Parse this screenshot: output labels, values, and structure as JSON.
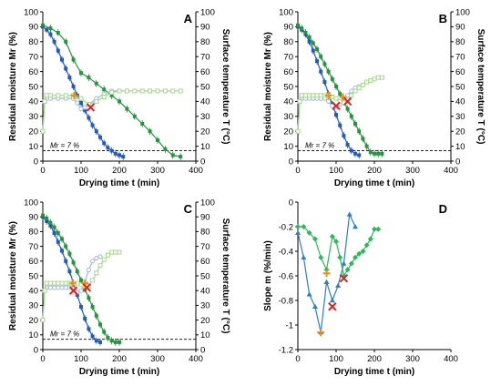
{
  "chart_data": [
    {
      "panel": "A",
      "type": "line",
      "xlabel": "Drying time t (min)",
      "ylabel_left": "Residual moisture Mr (%)",
      "ylabel_right": "Surface temperature T (°C)",
      "xlim": [
        0,
        400
      ],
      "ylim": [
        0,
        100
      ],
      "xticks": [
        "0",
        "100",
        "200",
        "300",
        "400"
      ],
      "yticks": [
        "0",
        "10",
        "20",
        "30",
        "40",
        "50",
        "60",
        "70",
        "80",
        "90",
        "100"
      ],
      "yticks_right": [
        "0",
        "10",
        "20",
        "30",
        "40",
        "50",
        "60",
        "70",
        "80",
        "90",
        "100"
      ],
      "threshold": {
        "value": 7,
        "label": "Mr = 7 %"
      },
      "colors": {
        "blue": "#1f5bc4",
        "green": "#1e9a3a",
        "light_blue": "#9db8dc",
        "light_green": "#a6d88a"
      },
      "series": [
        {
          "color": "blue",
          "marker": "square",
          "x": [
            0,
            10,
            20,
            30,
            40,
            50,
            60,
            70,
            80,
            90,
            100,
            110,
            120,
            130,
            140,
            150,
            160,
            170,
            180,
            190,
            200,
            210
          ],
          "y": [
            90,
            88,
            85,
            80,
            74,
            68,
            62,
            56,
            50,
            44,
            39,
            34,
            29,
            24,
            20,
            16,
            12,
            9,
            7,
            5,
            4,
            3
          ]
        },
        {
          "color": "green",
          "marker": "square",
          "x": [
            0,
            20,
            40,
            60,
            80,
            100,
            120,
            140,
            160,
            180,
            200,
            220,
            240,
            260,
            280,
            300,
            320,
            340,
            360
          ],
          "y": [
            91,
            89,
            86,
            80,
            68,
            59,
            56,
            52,
            48,
            44,
            40,
            35,
            30,
            25,
            20,
            14,
            8,
            4,
            3
          ]
        },
        {
          "color": "light_blue",
          "marker": "open-circle",
          "x": [
            0,
            5,
            10,
            20,
            40,
            60,
            80,
            90,
            100,
            110,
            120,
            140,
            160,
            180,
            200,
            220
          ],
          "y": [
            20,
            40,
            42,
            42,
            42,
            42,
            42,
            39,
            35,
            36,
            38,
            42,
            45,
            47,
            47,
            47
          ]
        },
        {
          "color": "light_green",
          "marker": "open-square",
          "x": [
            0,
            5,
            10,
            20,
            40,
            60,
            80,
            100,
            120,
            140,
            160,
            180,
            200,
            220,
            240,
            260,
            280,
            300,
            320,
            340,
            360
          ],
          "y": [
            20,
            40,
            44,
            44,
            44,
            44,
            44,
            42,
            38,
            40,
            43,
            46,
            47,
            47,
            47,
            47,
            47,
            47,
            47,
            47,
            47
          ]
        }
      ],
      "markers": [
        {
          "type": "orange-cross",
          "x": 82,
          "y": 44
        },
        {
          "type": "red-x",
          "x": 125,
          "y": 36
        }
      ]
    },
    {
      "panel": "B",
      "type": "line",
      "xlabel": "Drying time t (min)",
      "ylabel_left": "Residual moisture Mr (%)",
      "ylabel_right": "Surface temperature T (°C)",
      "xlim": [
        0,
        400
      ],
      "ylim": [
        0,
        100
      ],
      "xticks": [
        "0",
        "100",
        "200",
        "300",
        "400"
      ],
      "yticks": [
        "0",
        "10",
        "20",
        "30",
        "40",
        "50",
        "60",
        "70",
        "80",
        "90",
        "100"
      ],
      "yticks_right": [
        "0",
        "10",
        "20",
        "30",
        "40",
        "50",
        "60",
        "70",
        "80",
        "90",
        "100"
      ],
      "threshold": {
        "value": 7,
        "label": "Mr = 7 %"
      },
      "colors": {
        "blue": "#1f5bc4",
        "green": "#1e9a3a",
        "light_blue": "#9db8dc",
        "light_green": "#a6d88a"
      },
      "series": [
        {
          "color": "blue",
          "marker": "square",
          "x": [
            0,
            10,
            20,
            30,
            40,
            50,
            60,
            70,
            80,
            90,
            100,
            110,
            120,
            130,
            140,
            150,
            160
          ],
          "y": [
            90,
            88,
            85,
            80,
            74,
            67,
            60,
            53,
            45,
            38,
            31,
            24,
            17,
            11,
            7,
            5,
            4
          ]
        },
        {
          "color": "green",
          "marker": "square",
          "x": [
            0,
            10,
            20,
            30,
            40,
            50,
            60,
            70,
            80,
            90,
            100,
            110,
            120,
            130,
            140,
            150,
            160,
            170,
            180,
            190,
            200,
            210,
            220
          ],
          "y": [
            91,
            89,
            86,
            83,
            79,
            75,
            70,
            65,
            60,
            55,
            50,
            45,
            40,
            35,
            30,
            25,
            20,
            15,
            10,
            6,
            5,
            5,
            5
          ]
        },
        {
          "color": "light_blue",
          "marker": "open-circle",
          "x": [
            0,
            5,
            10,
            20,
            30,
            40,
            50,
            60,
            70,
            80,
            90,
            100,
            110,
            120,
            130,
            140,
            150,
            160
          ],
          "y": [
            20,
            40,
            42,
            42,
            42,
            42,
            42,
            42,
            42,
            40,
            37,
            36,
            38,
            41,
            44,
            47,
            49,
            50
          ]
        },
        {
          "color": "light_green",
          "marker": "open-square",
          "x": [
            0,
            5,
            10,
            20,
            30,
            40,
            50,
            60,
            70,
            80,
            90,
            100,
            110,
            120,
            130,
            140,
            150,
            160,
            170,
            180,
            190,
            200,
            210,
            220
          ],
          "y": [
            20,
            40,
            44,
            44,
            44,
            44,
            44,
            44,
            44,
            44,
            43,
            42,
            40,
            39,
            41,
            44,
            47,
            49,
            51,
            53,
            54,
            55,
            56,
            56
          ]
        }
      ],
      "markers": [
        {
          "type": "orange-cross",
          "x": 80,
          "y": 44
        },
        {
          "type": "red-x",
          "x": 100,
          "y": 37
        },
        {
          "type": "orange-cross",
          "x": 118,
          "y": 43
        },
        {
          "type": "red-x",
          "x": 130,
          "y": 40
        }
      ]
    },
    {
      "panel": "C",
      "type": "line",
      "xlabel": "Drying time t (min)",
      "ylabel_left": "Residual moisture Mr (%)",
      "ylabel_right": "Surface temperature T (°C)",
      "xlim": [
        0,
        400
      ],
      "ylim": [
        0,
        100
      ],
      "xticks": [
        "0",
        "100",
        "200",
        "300",
        "400"
      ],
      "yticks": [
        "0",
        "10",
        "20",
        "30",
        "40",
        "50",
        "60",
        "70",
        "80",
        "90",
        "100"
      ],
      "yticks_right": [
        "0",
        "10",
        "20",
        "30",
        "40",
        "50",
        "60",
        "70",
        "80",
        "90",
        "100"
      ],
      "threshold": {
        "value": 7,
        "label": "Mr = 7 %"
      },
      "colors": {
        "blue": "#1f5bc4",
        "green": "#1e9a3a",
        "light_blue": "#9db8dc",
        "light_green": "#a6d88a"
      },
      "series": [
        {
          "color": "blue",
          "marker": "square",
          "x": [
            0,
            10,
            20,
            30,
            40,
            50,
            60,
            70,
            80,
            90,
            100,
            110,
            120,
            130,
            140,
            150
          ],
          "y": [
            90,
            87,
            84,
            79,
            73,
            67,
            60,
            53,
            45,
            37,
            29,
            21,
            14,
            9,
            6,
            5
          ]
        },
        {
          "color": "green",
          "marker": "square",
          "x": [
            0,
            10,
            20,
            30,
            40,
            50,
            60,
            70,
            80,
            90,
            100,
            110,
            120,
            130,
            140,
            150,
            160,
            170,
            180,
            190,
            200
          ],
          "y": [
            91,
            89,
            86,
            83,
            79,
            75,
            70,
            65,
            59,
            53,
            47,
            41,
            35,
            29,
            23,
            17,
            12,
            8,
            6,
            5,
            5
          ]
        },
        {
          "color": "light_blue",
          "marker": "open-circle",
          "x": [
            0,
            5,
            10,
            20,
            30,
            40,
            50,
            60,
            70,
            80,
            90,
            100,
            110,
            120,
            130,
            140,
            150
          ],
          "y": [
            20,
            40,
            42,
            42,
            42,
            42,
            42,
            42,
            42,
            41,
            39,
            40,
            46,
            54,
            60,
            62,
            63
          ]
        },
        {
          "color": "light_green",
          "marker": "open-square",
          "x": [
            0,
            5,
            10,
            20,
            30,
            40,
            50,
            60,
            70,
            80,
            90,
            100,
            110,
            120,
            130,
            140,
            150,
            160,
            170,
            180,
            190,
            200
          ],
          "y": [
            20,
            40,
            45,
            45,
            45,
            45,
            45,
            45,
            45,
            45,
            45,
            44,
            43,
            43,
            47,
            52,
            57,
            61,
            64,
            66,
            66,
            66
          ]
        }
      ],
      "markers": [
        {
          "type": "orange-cross",
          "x": 78,
          "y": 45
        },
        {
          "type": "red-x",
          "x": 80,
          "y": 40
        },
        {
          "type": "orange-cross",
          "x": 110,
          "y": 45
        },
        {
          "type": "red-x",
          "x": 115,
          "y": 42
        }
      ]
    },
    {
      "panel": "D",
      "type": "line",
      "xlabel": "Drying time t (min)",
      "ylabel": "Slope m (%/min)",
      "xlim": [
        0,
        400
      ],
      "ylim": [
        -1.2,
        0
      ],
      "xticks": [
        "0",
        "100",
        "200",
        "300",
        "400"
      ],
      "yticks": [
        "-1.2",
        "-1",
        "-0.8",
        "-0.6",
        "-0.4",
        "-0.2",
        "0"
      ],
      "colors": {
        "blue": "#2b7fc2",
        "green": "#2db85a"
      },
      "series": [
        {
          "color": "blue",
          "marker": "triangle",
          "x": [
            0,
            15,
            30,
            45,
            60,
            75,
            90,
            105,
            120,
            135,
            150
          ],
          "y": [
            -0.25,
            -0.45,
            -0.75,
            -0.85,
            -1.06,
            -0.65,
            -0.8,
            -0.68,
            -0.5,
            -0.1,
            -0.2
          ]
        },
        {
          "color": "green",
          "marker": "diamond",
          "x": [
            0,
            15,
            30,
            45,
            60,
            75,
            90,
            100,
            110,
            120,
            130,
            140,
            150,
            160,
            170,
            180,
            190,
            200,
            210
          ],
          "y": [
            -0.2,
            -0.2,
            -0.25,
            -0.3,
            -0.45,
            -0.55,
            -0.28,
            -0.32,
            -0.45,
            -0.6,
            -0.55,
            -0.5,
            -0.45,
            -0.42,
            -0.4,
            -0.35,
            -0.3,
            -0.22,
            -0.22
          ]
        }
      ],
      "markers": [
        {
          "type": "orange-cross",
          "x": 60,
          "y": -1.06
        },
        {
          "type": "orange-cross",
          "x": 75,
          "y": -0.58
        },
        {
          "type": "red-x",
          "x": 90,
          "y": -0.85
        },
        {
          "type": "red-x",
          "x": 120,
          "y": -0.62
        }
      ]
    }
  ]
}
